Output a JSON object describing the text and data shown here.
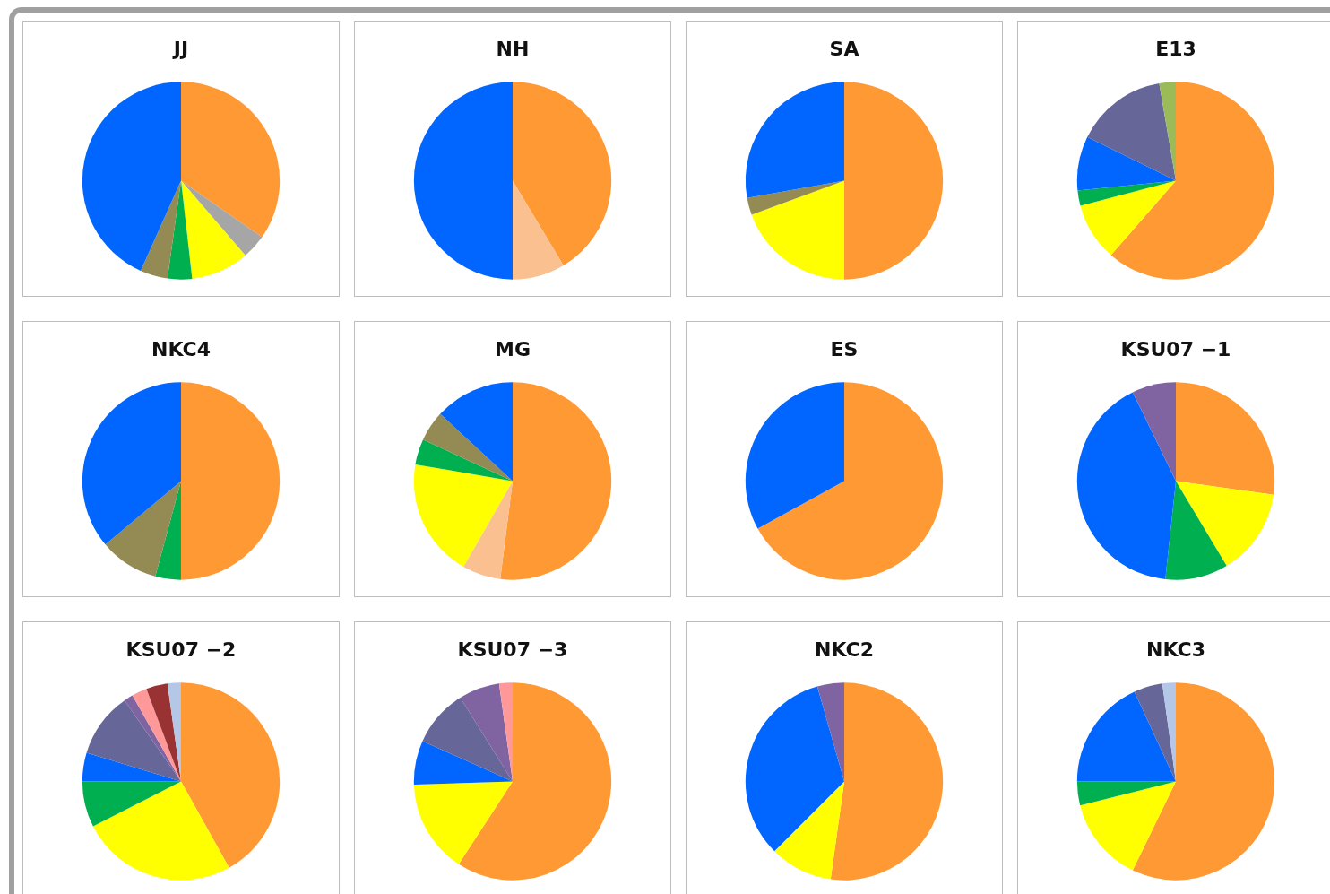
{
  "chart_data": [
    {
      "type": "pie",
      "title": "JJ",
      "categories": [
        null,
        null,
        null,
        null,
        null,
        null
      ],
      "values": [
        34.7,
        4,
        9.5,
        4,
        4.5,
        43.3
      ],
      "colors": [
        "#ff9933",
        "#a6a6a6",
        "#ffff00",
        "#00b050",
        "#948a54",
        "#0066ff"
      ]
    },
    {
      "type": "pie",
      "title": "NH",
      "categories": [
        null,
        null,
        null
      ],
      "values": [
        41.4,
        8.6,
        50
      ],
      "colors": [
        "#ff9933",
        "#fac090",
        "#0066ff"
      ]
    },
    {
      "type": "pie",
      "title": "SA",
      "categories": [
        null,
        null,
        null,
        null
      ],
      "values": [
        50,
        19.4,
        2.8,
        27.8
      ],
      "colors": [
        "#ff9933",
        "#ffff00",
        "#948a54",
        "#0066ff"
      ]
    },
    {
      "type": "pie",
      "title": "E13",
      "categories": [
        null,
        null,
        null,
        null,
        null,
        null
      ],
      "values": [
        61.4,
        9.5,
        2.5,
        8.9,
        15,
        2.7
      ],
      "colors": [
        "#ff9933",
        "#ffff00",
        "#00b050",
        "#0066ff",
        "#666699",
        "#9bbb59"
      ]
    },
    {
      "type": "pie",
      "title": "NKC4",
      "categories": [
        null,
        null,
        null,
        null
      ],
      "values": [
        50,
        4.2,
        9.7,
        36.1
      ],
      "colors": [
        "#ff9933",
        "#00b050",
        "#948a54",
        "#0066ff"
      ]
    },
    {
      "type": "pie",
      "title": "MG",
      "categories": [
        null,
        null,
        null,
        null,
        null,
        null
      ],
      "values": [
        52,
        6.3,
        19.4,
        4.2,
        5,
        13.1
      ],
      "colors": [
        "#ff9933",
        "#fac090",
        "#ffff00",
        "#00b050",
        "#948a54",
        "#0066ff"
      ]
    },
    {
      "type": "pie",
      "title": "ES",
      "categories": [
        null,
        null
      ],
      "values": [
        67,
        33
      ],
      "colors": [
        "#ff9933",
        "#0066ff"
      ]
    },
    {
      "type": "pie",
      "title": "KSU07 −1",
      "categories": [
        null,
        null,
        null,
        null,
        null
      ],
      "values": [
        27.2,
        14.2,
        10.3,
        41.1,
        7.2
      ],
      "colors": [
        "#ff9933",
        "#ffff00",
        "#00b050",
        "#0066ff",
        "#8064a2"
      ]
    },
    {
      "type": "pie",
      "title": "KSU07 −2",
      "categories": [
        null,
        null,
        null,
        null,
        null,
        null,
        null,
        null,
        null
      ],
      "values": [
        41.9,
        25.6,
        7.5,
        4.7,
        10.6,
        1.5,
        2.5,
        3.5,
        2.2
      ],
      "colors": [
        "#ff9933",
        "#ffff00",
        "#00b050",
        "#0066ff",
        "#666699",
        "#8064a2",
        "#ff9999",
        "#993333",
        "#b4c7e7"
      ]
    },
    {
      "type": "pie",
      "title": "KSU07 −3",
      "categories": [
        null,
        null,
        null,
        null,
        null,
        null
      ],
      "values": [
        59.2,
        15.3,
        7.2,
        9.4,
        6.7,
        2.2
      ],
      "colors": [
        "#ff9933",
        "#ffff00",
        "#0066ff",
        "#666699",
        "#8064a2",
        "#ff9999"
      ]
    },
    {
      "type": "pie",
      "title": "NKC2",
      "categories": [
        null,
        null,
        null,
        null
      ],
      "values": [
        52.2,
        10.3,
        33.1,
        4.4
      ],
      "colors": [
        "#ff9933",
        "#ffff00",
        "#0066ff",
        "#8064a2"
      ]
    },
    {
      "type": "pie",
      "title": "NKC3",
      "categories": [
        null,
        null,
        null,
        null,
        null,
        null
      ],
      "values": [
        57.2,
        13.9,
        3.9,
        18.1,
        4.7,
        2.2
      ],
      "colors": [
        "#ff9933",
        "#ffff00",
        "#00b050",
        "#0066ff",
        "#666699",
        "#b4c7e7"
      ]
    }
  ]
}
